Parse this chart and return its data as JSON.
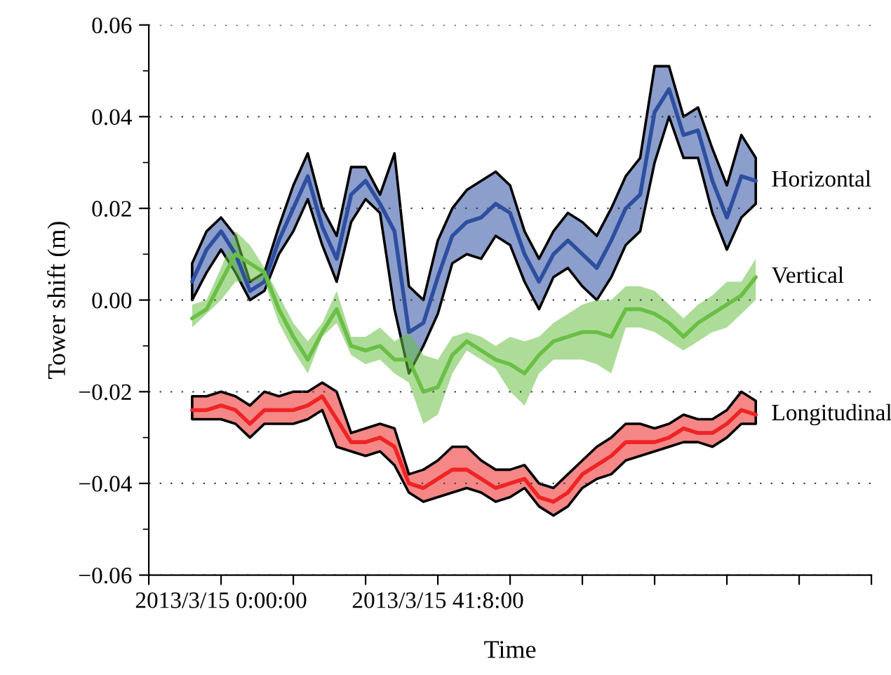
{
  "chart_data": {
    "type": "line",
    "xlabel": "Time",
    "ylabel": "Tower shift (m)",
    "categories": [
      null,
      null,
      null,
      null,
      null,
      "2013/3/15 0:00:00",
      null,
      null,
      null,
      null,
      null,
      null,
      null,
      null,
      null,
      null,
      null,
      null,
      null,
      null,
      "2013/3/15 41:8:00",
      null,
      null,
      null,
      null,
      null,
      null,
      null,
      null,
      null,
      null,
      null,
      null,
      null,
      null,
      null,
      null,
      null,
      null,
      null,
      null,
      null,
      null,
      null,
      null,
      null,
      null,
      null,
      null,
      null,
      null
    ],
    "ylim": [
      -0.06,
      0.06
    ],
    "yticks": [
      {
        "value": -0.06,
        "label": "−0.06"
      },
      {
        "value": -0.05,
        "label": null
      },
      {
        "value": -0.04,
        "label": "−0.04"
      },
      {
        "value": -0.03,
        "label": null
      },
      {
        "value": -0.02,
        "label": "−0.02"
      },
      {
        "value": -0.01,
        "label": null
      },
      {
        "value": 0,
        "label": "0.00"
      },
      {
        "value": 0.01,
        "label": null
      },
      {
        "value": 0.02,
        "label": "0.02"
      },
      {
        "value": 0.03,
        "label": null
      },
      {
        "value": 0.04,
        "label": "0.04"
      },
      {
        "value": 0.05,
        "label": null
      },
      {
        "value": 0.06,
        "label": "0.06"
      }
    ],
    "grid": "y",
    "legend": false,
    "series": [
      {
        "name": "Horizontal",
        "color": "#2e4fa0",
        "lower": [
          null,
          null,
          null,
          0.0,
          0.006,
          0.011,
          0.006,
          0.0,
          0.002,
          0.01,
          0.015,
          0.022,
          0.012,
          0.004,
          0.017,
          0.022,
          0.019,
          -0.002,
          -0.016,
          -0.01,
          -0.003,
          0.008,
          0.01,
          0.009,
          0.014,
          0.012,
          0.004,
          -0.002,
          0.005,
          0.007,
          0.003,
          0.0,
          0.005,
          0.012,
          0.015,
          0.03,
          0.04,
          0.031,
          0.031,
          0.019,
          0.011,
          0.018,
          0.021,
          null,
          null,
          null,
          null,
          null,
          null,
          null,
          null
        ],
        "upper": [
          null,
          null,
          null,
          0.008,
          0.015,
          0.018,
          0.014,
          0.004,
          0.006,
          0.016,
          0.025,
          0.032,
          0.02,
          0.014,
          0.029,
          0.029,
          0.023,
          0.032,
          0.003,
          0.0,
          0.013,
          0.02,
          0.024,
          0.026,
          0.028,
          0.025,
          0.015,
          0.009,
          0.015,
          0.019,
          0.017,
          0.014,
          0.02,
          0.027,
          0.031,
          0.051,
          0.051,
          0.04,
          0.042,
          0.033,
          0.025,
          0.036,
          0.031,
          null,
          null,
          null,
          null,
          null,
          null,
          null,
          null
        ],
        "values": [
          null,
          null,
          null,
          0.004,
          0.011,
          0.015,
          0.01,
          0.002,
          0.004,
          0.013,
          0.02,
          0.027,
          0.016,
          0.009,
          0.023,
          0.026,
          0.021,
          0.015,
          -0.007,
          -0.005,
          0.005,
          0.014,
          0.017,
          0.018,
          0.021,
          0.019,
          0.01,
          0.004,
          0.01,
          0.013,
          0.01,
          0.007,
          0.013,
          0.02,
          0.023,
          0.041,
          0.046,
          0.036,
          0.037,
          0.026,
          0.018,
          0.027,
          0.026,
          null,
          null,
          null,
          null,
          null,
          null,
          null,
          null
        ]
      },
      {
        "name": "Vertical",
        "color": "#6abf45",
        "lower": [
          null,
          null,
          null,
          -0.006,
          -0.003,
          0.0,
          0.004,
          0.004,
          0.004,
          -0.005,
          -0.011,
          -0.016,
          -0.008,
          -0.005,
          -0.012,
          -0.014,
          -0.013,
          -0.016,
          -0.018,
          -0.027,
          -0.025,
          -0.016,
          -0.011,
          -0.013,
          -0.015,
          -0.02,
          -0.023,
          -0.016,
          -0.013,
          -0.013,
          -0.013,
          -0.014,
          -0.016,
          -0.006,
          -0.006,
          -0.007,
          -0.009,
          -0.011,
          -0.009,
          -0.007,
          -0.006,
          -0.003,
          0.0,
          null,
          null,
          null,
          null,
          null,
          null,
          null,
          null
        ],
        "upper": [
          null,
          null,
          null,
          -0.001,
          0.0,
          0.007,
          0.015,
          0.012,
          0.007,
          0.001,
          -0.005,
          -0.009,
          -0.005,
          0.002,
          -0.008,
          -0.008,
          -0.006,
          -0.009,
          -0.007,
          -0.012,
          -0.013,
          -0.008,
          -0.007,
          -0.008,
          -0.01,
          -0.008,
          -0.009,
          -0.008,
          -0.005,
          -0.003,
          -0.001,
          0.0,
          0.0,
          0.003,
          0.003,
          0.002,
          -0.001,
          -0.004,
          -0.001,
          0.001,
          0.004,
          0.004,
          0.009,
          null,
          null,
          null,
          null,
          null,
          null,
          null,
          null
        ],
        "values": [
          null,
          null,
          null,
          -0.004,
          -0.002,
          0.004,
          0.01,
          0.008,
          0.006,
          -0.002,
          -0.008,
          -0.013,
          -0.007,
          -0.002,
          -0.01,
          -0.011,
          -0.01,
          -0.013,
          -0.013,
          -0.02,
          -0.019,
          -0.012,
          -0.009,
          -0.011,
          -0.013,
          -0.014,
          -0.016,
          -0.012,
          -0.009,
          -0.008,
          -0.007,
          -0.007,
          -0.008,
          -0.002,
          -0.002,
          -0.003,
          -0.005,
          -0.008,
          -0.005,
          -0.003,
          -0.001,
          0.001,
          0.005,
          null,
          null,
          null,
          null,
          null,
          null,
          null,
          null
        ]
      },
      {
        "name": "Longitudinal",
        "color": "#ee2424",
        "lower": [
          null,
          null,
          null,
          -0.026,
          -0.026,
          -0.026,
          -0.027,
          -0.03,
          -0.027,
          -0.027,
          -0.027,
          -0.026,
          -0.024,
          -0.032,
          -0.033,
          -0.034,
          -0.033,
          -0.036,
          -0.042,
          -0.044,
          -0.043,
          -0.042,
          -0.041,
          -0.042,
          -0.044,
          -0.043,
          -0.041,
          -0.045,
          -0.047,
          -0.045,
          -0.041,
          -0.039,
          -0.038,
          -0.035,
          -0.034,
          -0.033,
          -0.032,
          -0.031,
          -0.031,
          -0.032,
          -0.03,
          -0.027,
          -0.027,
          null,
          null,
          null,
          null,
          null,
          null,
          null,
          null
        ],
        "upper": [
          null,
          null,
          null,
          -0.021,
          -0.021,
          -0.02,
          -0.021,
          -0.023,
          -0.02,
          -0.021,
          -0.02,
          -0.02,
          -0.018,
          -0.02,
          -0.029,
          -0.028,
          -0.027,
          -0.028,
          -0.038,
          -0.037,
          -0.035,
          -0.032,
          -0.032,
          -0.035,
          -0.037,
          -0.037,
          -0.036,
          -0.04,
          -0.041,
          -0.038,
          -0.035,
          -0.032,
          -0.03,
          -0.027,
          -0.027,
          -0.028,
          -0.027,
          -0.025,
          -0.026,
          -0.026,
          -0.024,
          -0.02,
          -0.022,
          null,
          null,
          null,
          null,
          null,
          null,
          null,
          null
        ],
        "values": [
          null,
          null,
          null,
          -0.024,
          -0.024,
          -0.023,
          -0.024,
          -0.027,
          -0.024,
          -0.024,
          -0.024,
          -0.023,
          -0.021,
          -0.026,
          -0.031,
          -0.031,
          -0.03,
          -0.032,
          -0.04,
          -0.041,
          -0.039,
          -0.037,
          -0.037,
          -0.039,
          -0.041,
          -0.04,
          -0.039,
          -0.043,
          -0.044,
          -0.042,
          -0.038,
          -0.036,
          -0.034,
          -0.031,
          -0.031,
          -0.031,
          -0.03,
          -0.028,
          -0.029,
          -0.029,
          -0.027,
          -0.024,
          -0.025,
          null,
          null,
          null,
          null,
          null,
          null,
          null,
          null
        ]
      }
    ]
  }
}
